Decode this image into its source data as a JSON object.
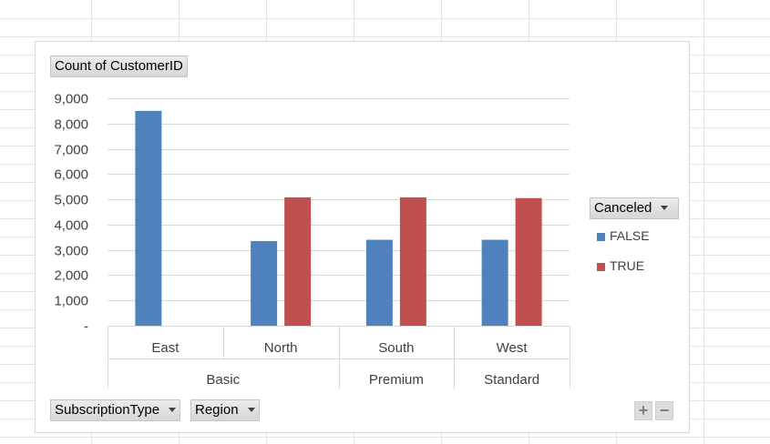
{
  "value_field_label": "Count of CustomerID",
  "axis_field_buttons": [
    {
      "label": "SubscriptionType"
    },
    {
      "label": "Region"
    }
  ],
  "legend_field_label": "Canceled",
  "zoom": {
    "plus": "+",
    "minus": "−"
  },
  "colors": {
    "FALSE": "#4f81bd",
    "TRUE": "#c0504d",
    "gridline": "#d9d9d9",
    "field_button": "#d6d6d6"
  },
  "icons": {
    "dropdown": "chevron-down-icon",
    "zoom_in": "plus-icon",
    "zoom_out": "minus-icon"
  },
  "chart_data": {
    "type": "bar",
    "title": "",
    "grid": true,
    "legend_position": "right",
    "ylim": [
      0,
      9000
    ],
    "yticks": [
      {
        "value": 0,
        "label": "-"
      },
      {
        "value": 1000,
        "label": "1,000"
      },
      {
        "value": 2000,
        "label": "2,000"
      },
      {
        "value": 3000,
        "label": "3,000"
      },
      {
        "value": 4000,
        "label": "4,000"
      },
      {
        "value": 5000,
        "label": "5,000"
      },
      {
        "value": 6000,
        "label": "6,000"
      },
      {
        "value": 7000,
        "label": "7,000"
      },
      {
        "value": 8000,
        "label": "8,000"
      },
      {
        "value": 9000,
        "label": "9,000"
      }
    ],
    "categories": [
      "East",
      "North",
      "South",
      "West"
    ],
    "groups": [
      {
        "label": "Basic",
        "categories": [
          "East",
          "North"
        ]
      },
      {
        "label": "Premium",
        "categories": [
          "South"
        ]
      },
      {
        "label": "Standard",
        "categories": [
          "West"
        ]
      }
    ],
    "series": [
      {
        "name": "FALSE",
        "values": [
          8500,
          3350,
          3400,
          3400
        ]
      },
      {
        "name": "TRUE",
        "values": [
          null,
          5080,
          5080,
          5050
        ]
      }
    ]
  }
}
